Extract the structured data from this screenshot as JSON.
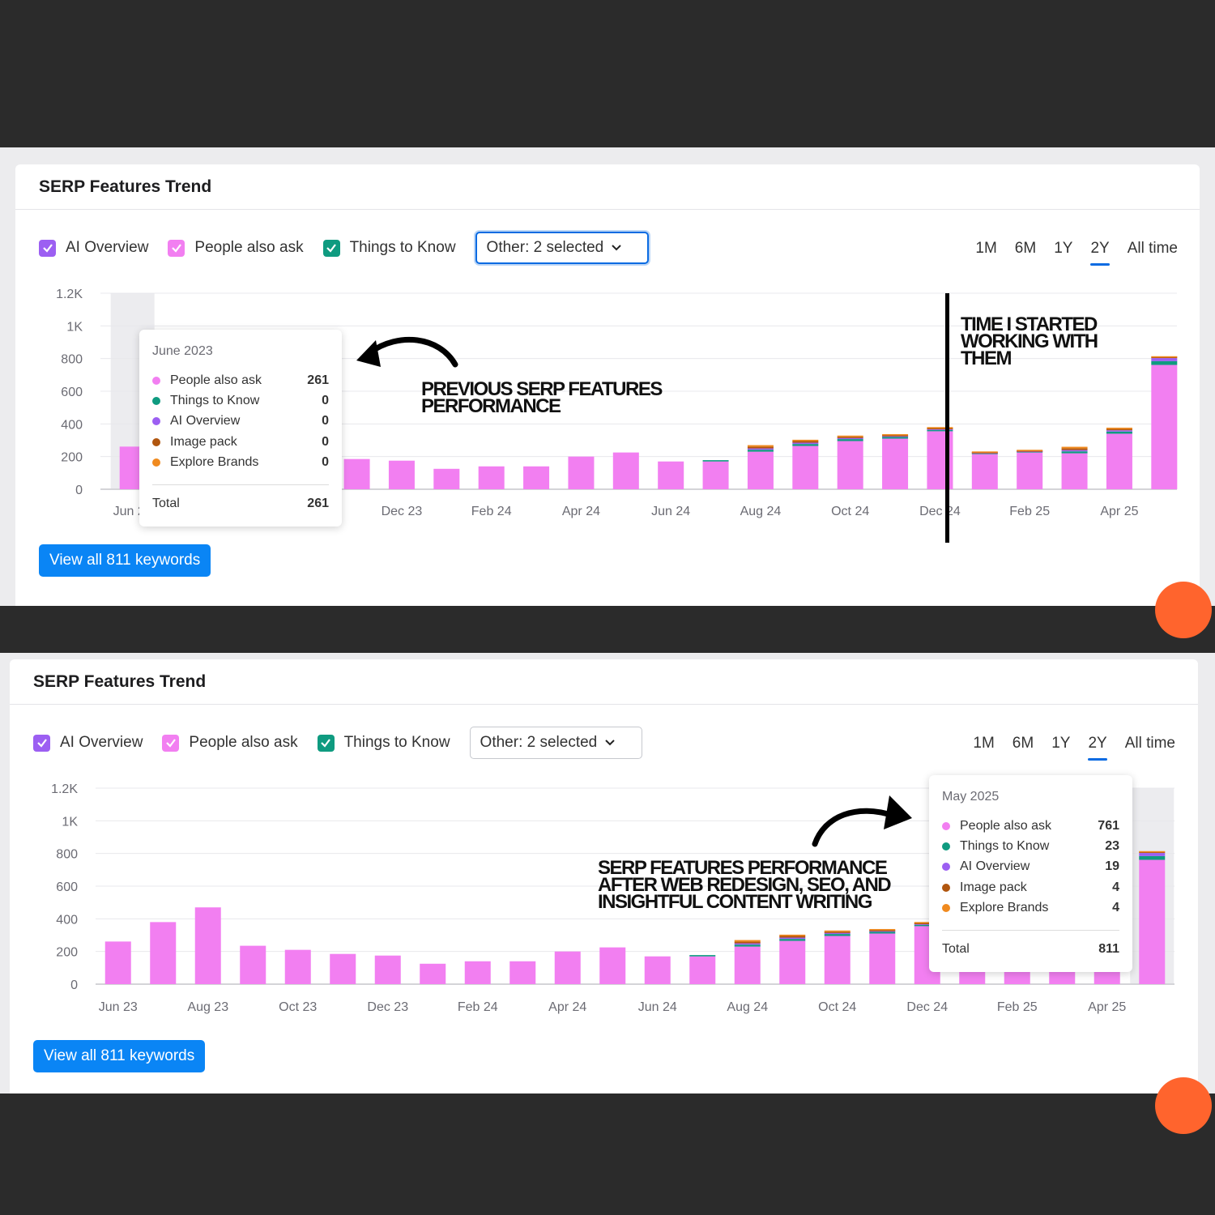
{
  "panels": [
    {
      "title": "SERP Features Trend",
      "legend": {
        "ai_overview": "AI Overview",
        "people_also_ask": "People also ask",
        "things_to_know": "Things to Know"
      },
      "other_dropdown": "Other: 2 selected",
      "periods": [
        "1M",
        "6M",
        "1Y",
        "2Y",
        "All time"
      ],
      "active_period": "2Y",
      "view_all_button": "View all 811 keywords",
      "tooltip": {
        "date": "June 2023",
        "rows": [
          {
            "name": "People also ask",
            "value": "261",
            "color": "#f27ff1"
          },
          {
            "name": "Things to Know",
            "value": "0",
            "color": "#0f9b80"
          },
          {
            "name": "AI Overview",
            "value": "0",
            "color": "#9c5ff2"
          },
          {
            "name": "Image pack",
            "value": "0",
            "color": "#b0560f"
          },
          {
            "name": "Explore Brands",
            "value": "0",
            "color": "#f08a1f"
          }
        ],
        "total_label": "Total",
        "total_value": "261"
      },
      "annotations": {
        "previous": "PREVIOUS SERP FEATURES PERFORMANCE",
        "started": "TIME I STARTED WORKING WITH THEM"
      }
    },
    {
      "title": "SERP Features Trend",
      "legend": {
        "ai_overview": "AI Overview",
        "people_also_ask": "People also ask",
        "things_to_know": "Things to Know"
      },
      "other_dropdown": "Other: 2 selected",
      "periods": [
        "1M",
        "6M",
        "1Y",
        "2Y",
        "All time"
      ],
      "active_period": "2Y",
      "view_all_button": "View all 811 keywords",
      "tooltip": {
        "date": "May 2025",
        "rows": [
          {
            "name": "People also ask",
            "value": "761",
            "color": "#f27ff1"
          },
          {
            "name": "Things to Know",
            "value": "23",
            "color": "#0f9b80"
          },
          {
            "name": "AI Overview",
            "value": "19",
            "color": "#9c5ff2"
          },
          {
            "name": "Image pack",
            "value": "4",
            "color": "#b0560f"
          },
          {
            "name": "Explore Brands",
            "value": "4",
            "color": "#f08a1f"
          }
        ],
        "total_label": "Total",
        "total_value": "811"
      },
      "annotations": {
        "after": "SERP FEATURES PERFORMANCE AFTER WEB REDESIGN, SEO, AND INSIGHTFUL CONTENT WRITING"
      }
    }
  ],
  "colors": {
    "people_also_ask": "#f27ff1",
    "things_to_know": "#0f9b80",
    "ai_overview": "#9c5ff2",
    "image_pack": "#b0560f",
    "explore_brands": "#f08a1f",
    "accent": "#0a6be2",
    "button": "#0a85f5"
  },
  "chart_data": {
    "type": "bar",
    "stacked": true,
    "y_ticks": [
      "0",
      "200",
      "400",
      "600",
      "800",
      "1K",
      "1.2K"
    ],
    "ylim": [
      0,
      1200
    ],
    "x_tick_labels": [
      "Jun 23",
      "Aug 23",
      "Oct 23",
      "Dec 23",
      "Feb 24",
      "Apr 24",
      "Jun 24",
      "Aug 24",
      "Oct 24",
      "Dec 24",
      "Feb 25",
      "Apr 25"
    ],
    "categories": [
      "Jun 23",
      "Jul 23",
      "Aug 23",
      "Sep 23",
      "Oct 23",
      "Nov 23",
      "Dec 23",
      "Jan 24",
      "Feb 24",
      "Mar 24",
      "Apr 24",
      "May 24",
      "Jun 24",
      "Jul 24",
      "Aug 24",
      "Sep 24",
      "Oct 24",
      "Nov 24",
      "Dec 24",
      "Jan 25",
      "Feb 25",
      "Mar 25",
      "Apr 25",
      "May 25"
    ],
    "series": [
      {
        "name": "People also ask",
        "values": [
          261,
          380,
          470,
          235,
          210,
          185,
          175,
          125,
          140,
          140,
          200,
          225,
          170,
          170,
          230,
          265,
          295,
          310,
          355,
          215,
          225,
          220,
          340,
          761
        ]
      },
      {
        "name": "Things to Know",
        "values": [
          0,
          0,
          0,
          0,
          0,
          0,
          0,
          0,
          0,
          0,
          0,
          0,
          0,
          8,
          12,
          12,
          12,
          10,
          8,
          3,
          3,
          12,
          13,
          23
        ]
      },
      {
        "name": "AI Overview",
        "values": [
          0,
          0,
          0,
          0,
          0,
          0,
          0,
          0,
          0,
          0,
          0,
          0,
          0,
          0,
          8,
          8,
          6,
          4,
          4,
          2,
          2,
          8,
          8,
          19
        ]
      },
      {
        "name": "Image pack",
        "values": [
          0,
          0,
          0,
          0,
          0,
          0,
          0,
          0,
          0,
          0,
          0,
          0,
          0,
          0,
          10,
          10,
          8,
          6,
          6,
          4,
          4,
          10,
          8,
          4
        ]
      },
      {
        "name": "Explore Brands",
        "values": [
          0,
          0,
          0,
          0,
          0,
          0,
          0,
          0,
          0,
          0,
          0,
          0,
          0,
          0,
          10,
          8,
          6,
          4,
          4,
          2,
          2,
          10,
          8,
          4
        ]
      }
    ]
  }
}
